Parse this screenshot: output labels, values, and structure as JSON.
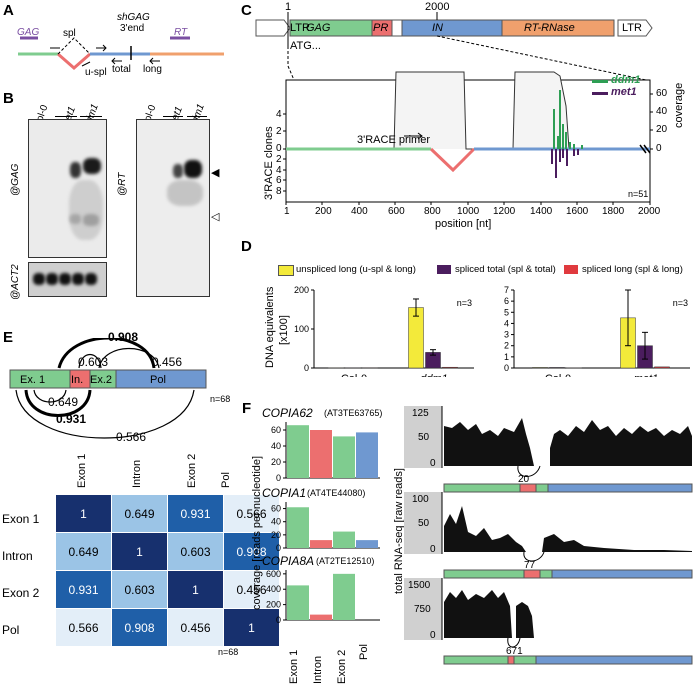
{
  "panels": {
    "A": "A",
    "B": "B",
    "C": "C",
    "D": "D",
    "E": "E",
    "F": "F"
  },
  "panelA": {
    "gag": "GAG",
    "rt": "RT",
    "spl": "spl",
    "u_spl": "u-spl",
    "shgag": "shGAG",
    "threeend": "3'end",
    "total": "total",
    "long": "long"
  },
  "panelB": {
    "lanes": [
      "Col-0",
      "met1",
      "ddm1"
    ],
    "probe_gag": "@GAG",
    "probe_act2": "@ACT2",
    "probe_rt": "@RT",
    "marker_filled": "◀",
    "marker_open": "◁"
  },
  "panelC": {
    "genome_labels": [
      "LTR",
      "GAG",
      "PR",
      "IN",
      "RT-RNase",
      "LTR"
    ],
    "pos1": "1",
    "pos2000": "2000",
    "atg": "ATG...",
    "ylabel": "3'RACE clones",
    "y2label": "coverage",
    "xlabel": "position [nt]",
    "primer": "3'RACE primer",
    "n": "n=51",
    "legend": [
      {
        "name": "ddm1",
        "color": "#2e9e54"
      },
      {
        "name": "met1",
        "color": "#4b1d5e"
      }
    ],
    "yticks_top": [
      "4",
      "2",
      "0"
    ],
    "yticks_bottom": [
      "2",
      "4",
      "6",
      "8"
    ],
    "coverage_ticks": [
      "60",
      "40",
      "20",
      "0"
    ],
    "xticks": [
      "1",
      "200",
      "400",
      "600",
      "800",
      "1000",
      "1200",
      "1400",
      "1600",
      "1800",
      "2000"
    ]
  },
  "panelD": {
    "ylabel": "DNA equivalents",
    "ylabel2": "[x100]",
    "legend": [
      {
        "name": "unspliced long (u-spl & long)",
        "color": "#f3ea3a"
      },
      {
        "name": "spliced total (spl & total)",
        "color": "#4b1d5e"
      },
      {
        "name": "spliced long (spl & long)",
        "color": "#e03a3e"
      }
    ]
  },
  "chart_data": [
    {
      "type": "bar",
      "title": "",
      "categories": [
        "Col-0",
        "ddm1"
      ],
      "series": [
        {
          "name": "unspliced long (u-spl & long)",
          "values": [
            0.5,
            155
          ],
          "errors": [
            0,
            22
          ]
        },
        {
          "name": "spliced total (spl & total)",
          "values": [
            0.3,
            40
          ],
          "errors": [
            0,
            7
          ]
        },
        {
          "name": "spliced long (spl & long)",
          "values": [
            0.1,
            2
          ],
          "errors": [
            0,
            0
          ]
        }
      ],
      "ylim": [
        0,
        200
      ],
      "yticks": [
        "0",
        "100",
        "200"
      ],
      "annotation": "n=3"
    },
    {
      "type": "bar",
      "title": "",
      "categories": [
        "Col-0",
        "met1"
      ],
      "series": [
        {
          "name": "unspliced long (u-spl & long)",
          "values": [
            0.05,
            4.5
          ],
          "errors": [
            0,
            2.5
          ]
        },
        {
          "name": "spliced total (spl & total)",
          "values": [
            0.05,
            2
          ],
          "errors": [
            0,
            1.2
          ]
        },
        {
          "name": "spliced long (spl & long)",
          "values": [
            0.02,
            0.1
          ],
          "errors": [
            0,
            0
          ]
        }
      ],
      "ylim": [
        0,
        7
      ],
      "yticks": [
        "0",
        "1",
        "2",
        "3",
        "4",
        "5",
        "6",
        "7"
      ],
      "annotation": "n=3"
    },
    {
      "type": "bar",
      "title": "COPIA62",
      "subtitle": "(AT3TE63765)",
      "categories": [
        "Exon 1",
        "Intron",
        "Exon 2",
        "Pol"
      ],
      "values": [
        66,
        60,
        52,
        57
      ],
      "ylim": [
        0,
        70
      ],
      "yticks": [
        "0",
        "20",
        "40",
        "60"
      ]
    },
    {
      "type": "bar",
      "title": "COPIA1",
      "subtitle": "(AT4TE44080)",
      "categories": [
        "Exon 1",
        "Intron",
        "Exon 2",
        "Pol"
      ],
      "values": [
        62,
        12,
        25,
        12
      ],
      "ylim": [
        0,
        70
      ],
      "yticks": [
        "0",
        "20",
        "40",
        "60"
      ]
    },
    {
      "type": "bar",
      "title": "COPIA8A",
      "subtitle": "(AT2TE12510)",
      "categories": [
        "Exon 1",
        "Intron",
        "Exon 2",
        "Pol"
      ],
      "values": [
        450,
        70,
        600,
        0
      ],
      "ylim": [
        0,
        650
      ],
      "yticks": [
        "0",
        "200",
        "400",
        "600"
      ]
    }
  ],
  "panelE": {
    "segments": [
      "Ex. 1",
      "In.",
      "Ex.2",
      "Pol"
    ],
    "arcs": [
      "0.908",
      "0.603",
      "0.456",
      "0.649",
      "0.931",
      "0.566"
    ],
    "n": "n=68",
    "matrix_labels": [
      "Exon 1",
      "Intron",
      "Exon 2",
      "Pol"
    ],
    "matrix": [
      [
        "1",
        "0.649",
        "0.931",
        "0.566"
      ],
      [
        "0.649",
        "1",
        "0.603",
        "0.908"
      ],
      [
        "0.931",
        "0.603",
        "1",
        "0.456"
      ],
      [
        "0.566",
        "0.908",
        "0.456",
        "1"
      ]
    ]
  },
  "panelF": {
    "ylabel": "coverage [reads per nucleotide]",
    "rnaseq_label": "total RNA-seq [raw reads]",
    "tracks": [
      {
        "ticks": [
          "125",
          "50",
          "0"
        ],
        "junction": "20"
      },
      {
        "ticks": [
          "100",
          "50",
          "0"
        ],
        "junction": "77"
      },
      {
        "ticks": [
          "1500",
          "750",
          "0"
        ],
        "junction": "671"
      }
    ]
  },
  "colors": {
    "exon": "#7fcc8f",
    "intron": "#ec6f6f",
    "pol": "#6f98d0",
    "rnase": "#f0a06d",
    "purple": "#7a4fa2"
  }
}
